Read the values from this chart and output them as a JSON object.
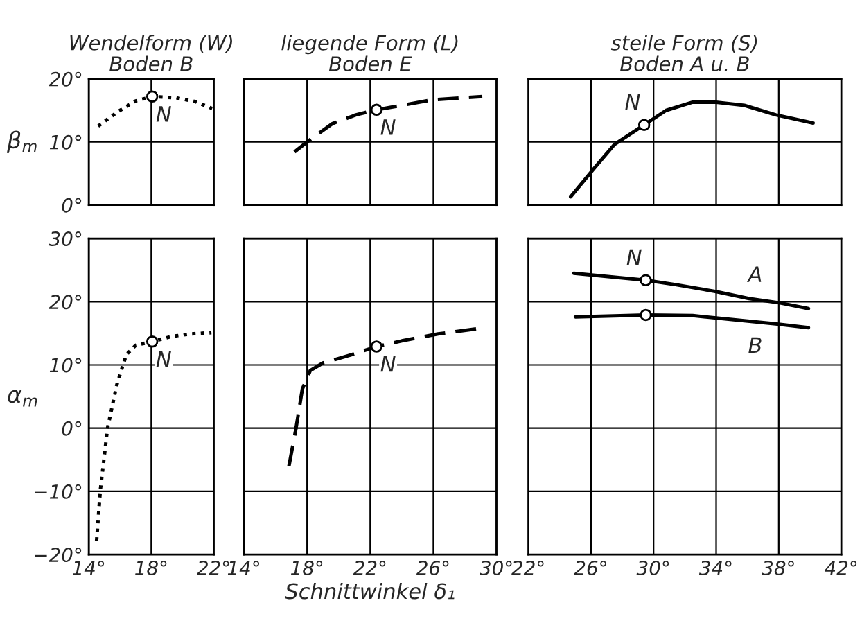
{
  "chart_data": [
    {
      "type": "line",
      "title": "Wendelform (W)\nBoden B",
      "ylabel": "β$_{m}$",
      "xlim": [
        14,
        22
      ],
      "xticks": [
        {
          "value": 14,
          "label": null
        },
        {
          "value": 18,
          "label": null
        },
        {
          "value": 22,
          "label": null
        }
      ],
      "ylim": [
        0,
        20
      ],
      "yticks": [
        {
          "value": 0,
          "label": "0°"
        },
        {
          "value": 10,
          "label": "10°"
        },
        {
          "value": 20,
          "label": "20°"
        }
      ],
      "tick_labels": "y",
      "grid": true,
      "series": [
        {
          "color": "#000000",
          "line_style": "dotted",
          "x": [
            14.6,
            15.8,
            17.0,
            18.06,
            19.6,
            20.8,
            21.9
          ],
          "values": [
            12.5,
            14.7,
            16.5,
            17.2,
            17.0,
            16.4,
            15.3
          ]
        },
        {
          "type": "scatter",
          "color": "#000000",
          "marker": "circle",
          "x": [
            18.06
          ],
          "values": [
            17.2
          ]
        }
      ],
      "annotations": [
        {
          "text": "N",
          "x": 18.06,
          "y": 17.2
        }
      ]
    },
    {
      "type": "line",
      "title": "liegende Form (L)\nBoden E",
      "xlim": [
        14,
        30
      ],
      "xticks": [
        {
          "value": 14,
          "label": null
        },
        {
          "value": 18,
          "label": null
        },
        {
          "value": 22,
          "label": null
        },
        {
          "value": 26,
          "label": null
        },
        {
          "value": 30,
          "label": null
        }
      ],
      "ylim": [
        0,
        20
      ],
      "yticks": [
        {
          "value": 0,
          "label": null
        },
        {
          "value": 10,
          "label": null
        },
        {
          "value": 20,
          "label": null
        }
      ],
      "tick_labels": false,
      "grid": true,
      "series": [
        {
          "color": "#000000",
          "line_style": "dashed",
          "x": [
            17.2,
            18.0,
            19.6,
            21.1,
            22.4,
            24.0,
            26.0,
            29.1
          ],
          "values": [
            8.4,
            10.0,
            12.9,
            14.3,
            15.1,
            15.8,
            16.7,
            17.2
          ]
        },
        {
          "type": "scatter",
          "color": "#000000",
          "marker": "circle",
          "x": [
            22.4
          ],
          "values": [
            15.1
          ]
        }
      ],
      "annotations": [
        {
          "text": "N",
          "x": 22.4,
          "y": 15.1
        }
      ]
    },
    {
      "type": "line",
      "title": "steile Form (S)\nBoden A u. B",
      "xlim": [
        22,
        42
      ],
      "xticks": [
        {
          "value": 22,
          "label": null
        },
        {
          "value": 26,
          "label": null
        },
        {
          "value": 30,
          "label": null
        },
        {
          "value": 34,
          "label": null
        },
        {
          "value": 38,
          "label": null
        },
        {
          "value": 42,
          "label": null
        }
      ],
      "ylim": [
        0,
        20
      ],
      "yticks": [
        {
          "value": 0,
          "label": null
        },
        {
          "value": 10,
          "label": null
        },
        {
          "value": 20,
          "label": null
        }
      ],
      "tick_labels": false,
      "grid": true,
      "series": [
        {
          "color": "#000000",
          "line_style": "solid",
          "x": [
            24.7,
            26.1,
            27.5,
            29.4,
            30.8,
            32.5,
            34.0,
            35.8,
            37.8,
            40.2
          ],
          "values": [
            1.3,
            5.5,
            9.6,
            12.7,
            15.0,
            16.3,
            16.3,
            15.8,
            14.3,
            13.0
          ]
        },
        {
          "type": "scatter",
          "color": "#000000",
          "marker": "circle",
          "x": [
            29.4
          ],
          "values": [
            12.7
          ]
        }
      ],
      "annotations": [
        {
          "text": "N",
          "x": 29.4,
          "y": 12.7
        }
      ]
    },
    {
      "type": "line",
      "ylabel": "α$_{m}$",
      "xlim": [
        14,
        22
      ],
      "xticks": [
        {
          "value": 14,
          "label": "14°"
        },
        {
          "value": 18,
          "label": "18°"
        },
        {
          "value": 22,
          "label": "22°"
        }
      ],
      "ylim": [
        -20,
        30
      ],
      "yticks": [
        {
          "value": -20,
          "label": "−20°"
        },
        {
          "value": -10,
          "label": "−10°"
        },
        {
          "value": 0,
          "label": "0°"
        },
        {
          "value": 10,
          "label": "10°"
        },
        {
          "value": 20,
          "label": "20°"
        },
        {
          "value": 30,
          "label": "30°"
        }
      ],
      "grid": true,
      "series": [
        {
          "color": "#000000",
          "line_style": "dotted",
          "x": [
            14.5,
            14.74,
            15.2,
            15.8,
            16.4,
            17.0,
            18.06,
            19.3,
            20.5,
            21.85
          ],
          "values": [
            -17.8,
            -9.8,
            0,
            6.9,
            11.6,
            13.1,
            13.7,
            14.5,
            14.9,
            15.1
          ]
        },
        {
          "type": "scatter",
          "color": "#000000",
          "marker": "circle",
          "x": [
            18.06
          ],
          "values": [
            13.7
          ]
        }
      ],
      "annotations": [
        {
          "text": "N",
          "x": 18.06,
          "y": 13.7
        }
      ]
    },
    {
      "type": "line",
      "xlabel": "Schnittwinkel δ₁",
      "xlim": [
        14,
        30
      ],
      "xticks": [
        {
          "value": 14,
          "label": "14°"
        },
        {
          "value": 18,
          "label": "18°"
        },
        {
          "value": 22,
          "label": "22°"
        },
        {
          "value": 26,
          "label": "26°"
        },
        {
          "value": 30,
          "label": "30°"
        }
      ],
      "ylim": [
        -20,
        30
      ],
      "yticks": [
        {
          "value": -20,
          "label": null
        },
        {
          "value": -10,
          "label": null
        },
        {
          "value": 0,
          "label": null
        },
        {
          "value": 10,
          "label": null
        },
        {
          "value": 20,
          "label": null
        },
        {
          "value": 30,
          "label": null
        }
      ],
      "tick_labels": "x",
      "grid": true,
      "series": [
        {
          "color": "#000000",
          "line_style": "dashed",
          "x": [
            16.85,
            17.3,
            17.7,
            18.2,
            19.0,
            20.8,
            22.4,
            24.0,
            26.3,
            29.0
          ],
          "values": [
            -6.0,
            0,
            6.2,
            9.1,
            10.3,
            11.6,
            12.9,
            13.8,
            14.9,
            15.8
          ]
        },
        {
          "type": "scatter",
          "color": "#000000",
          "marker": "circle",
          "x": [
            22.4
          ],
          "values": [
            12.9
          ]
        }
      ],
      "annotations": [
        {
          "text": "N",
          "x": 22.4,
          "y": 12.9
        }
      ]
    },
    {
      "type": "line",
      "xlim": [
        22,
        42
      ],
      "xticks": [
        {
          "value": 22,
          "label": "22°"
        },
        {
          "value": 26,
          "label": "26°"
        },
        {
          "value": 30,
          "label": "30°"
        },
        {
          "value": 34,
          "label": "34°"
        },
        {
          "value": 38,
          "label": "38°"
        },
        {
          "value": 42,
          "label": "42°"
        }
      ],
      "ylim": [
        -20,
        30
      ],
      "yticks": [
        {
          "value": -20,
          "label": null
        },
        {
          "value": -10,
          "label": null
        },
        {
          "value": 0,
          "label": null
        },
        {
          "value": 10,
          "label": null
        },
        {
          "value": 20,
          "label": null
        },
        {
          "value": 30,
          "label": null
        }
      ],
      "tick_labels": "x",
      "grid": true,
      "series": [
        {
          "color": "#000000",
          "line_style": "solid",
          "x": [
            24.9,
            29.5,
            31.4,
            34.0,
            36.1,
            38.1,
            39.9
          ],
          "values": [
            24.5,
            23.4,
            22.7,
            21.6,
            20.5,
            19.8,
            18.9
          ]
        },
        {
          "color": "#000000",
          "line_style": "solid",
          "x": [
            25.0,
            29.5,
            32.5,
            34.9,
            37.8,
            39.9
          ],
          "values": [
            17.6,
            17.9,
            17.8,
            17.2,
            16.5,
            15.9
          ]
        },
        {
          "type": "scatter",
          "color": "#000000",
          "marker": "circle",
          "x": [
            29.5,
            29.5
          ],
          "values": [
            23.4,
            17.9
          ]
        }
      ],
      "annotations": [
        {
          "text": "N",
          "x": 29.5,
          "y": 23.4
        },
        {
          "text": "A",
          "x": 36.5,
          "y": 20.4
        },
        {
          "text": "B",
          "x": 36.5,
          "y": 16.8
        }
      ]
    }
  ]
}
